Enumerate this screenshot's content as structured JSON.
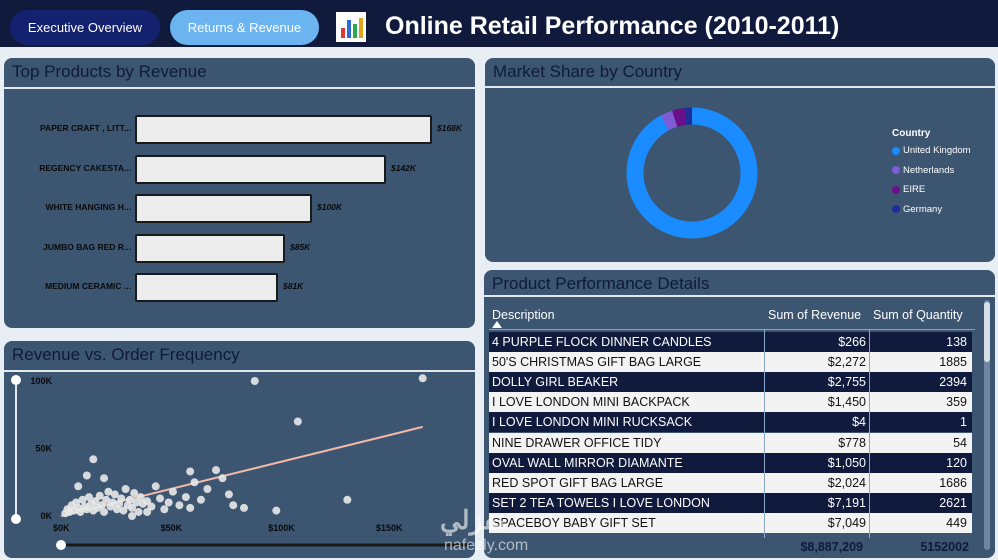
{
  "nav": {
    "executive_overview": "Executive Overview",
    "returns_revenue": "Returns & Revenue"
  },
  "header": {
    "title": "Online Retail Performance (2010-2011)",
    "logo_icon": "bar-chart-icon"
  },
  "top_products": {
    "title": "Top Products by Revenue",
    "items": [
      {
        "label": "PAPER CRAFT , LITT...",
        "value": 168,
        "value_label": "$168K"
      },
      {
        "label": "REGENCY CAKESTA...",
        "value": 142,
        "value_label": "$142K"
      },
      {
        "label": "WHITE HANGING H...",
        "value": 100,
        "value_label": "$100K"
      },
      {
        "label": "JUMBO BAG RED R...",
        "value": 85,
        "value_label": "$85K"
      },
      {
        "label": "MEDIUM CERAMIC ...",
        "value": 81,
        "value_label": "$81K"
      }
    ]
  },
  "market_share": {
    "title": "Market Share by Country",
    "legend_title": "Country",
    "countries": [
      {
        "name": "United Kingdom",
        "share": 0.92,
        "color": "#1a8cff"
      },
      {
        "name": "Netherlands",
        "share": 0.03,
        "color": "#7f5bd6"
      },
      {
        "name": "EIRE",
        "share": 0.03,
        "color": "#6a0e8a"
      },
      {
        "name": "Germany",
        "share": 0.02,
        "color": "#1f2d9a"
      }
    ]
  },
  "scatter": {
    "title": "Revenue vs. Order Frequency",
    "x_ticks": [
      "$0K",
      "$50K",
      "$100K",
      "$150K"
    ],
    "y_ticks": [
      "0K",
      "50K",
      "100K"
    ]
  },
  "details": {
    "title": "Product Performance Details",
    "headers": {
      "description": "Description",
      "revenue": "Sum of Revenue",
      "quantity": "Sum of Quantity"
    },
    "rows": [
      {
        "description": "4 PURPLE FLOCK DINNER CANDLES",
        "revenue": "$266",
        "quantity": "138"
      },
      {
        "description": "50'S CHRISTMAS GIFT BAG LARGE",
        "revenue": "$2,272",
        "quantity": "1885"
      },
      {
        "description": "DOLLY GIRL BEAKER",
        "revenue": "$2,755",
        "quantity": "2394"
      },
      {
        "description": "I LOVE LONDON MINI BACKPACK",
        "revenue": "$1,450",
        "quantity": "359"
      },
      {
        "description": "I LOVE LONDON MINI RUCKSACK",
        "revenue": "$4",
        "quantity": "1"
      },
      {
        "description": "NINE DRAWER OFFICE TIDY",
        "revenue": "$778",
        "quantity": "54"
      },
      {
        "description": "OVAL WALL MIRROR DIAMANTE",
        "revenue": "$1,050",
        "quantity": "120"
      },
      {
        "description": "RED SPOT GIFT BAG LARGE",
        "revenue": "$2,024",
        "quantity": "1686"
      },
      {
        "description": "SET 2 TEA TOWELS I LOVE LONDON",
        "revenue": "$7,191",
        "quantity": "2621"
      },
      {
        "description": "SPACEBOY BABY GIFT SET",
        "revenue": "$7,049",
        "quantity": "449"
      }
    ],
    "total_revenue": "$8,887,209",
    "total_quantity": "5152002"
  },
  "watermark": {
    "main": "نفزلي",
    "sub": "nafezly.com"
  },
  "chart_data": [
    {
      "type": "bar",
      "orientation": "horizontal",
      "title": "Top Products by Revenue",
      "categories": [
        "PAPER CRAFT , LITT...",
        "REGENCY CAKESTA...",
        "WHITE HANGING H...",
        "JUMBO BAG RED R...",
        "MEDIUM CERAMIC ..."
      ],
      "values": [
        168,
        142,
        100,
        85,
        81
      ],
      "unit": "$K"
    },
    {
      "type": "pie",
      "title": "Market Share by Country",
      "categories": [
        "United Kingdom",
        "Netherlands",
        "EIRE",
        "Germany"
      ],
      "values": [
        0.92,
        0.03,
        0.03,
        0.02
      ]
    },
    {
      "type": "scatter",
      "title": "Revenue vs. Order Frequency",
      "xlim": [
        0,
        170
      ],
      "ylim": [
        0,
        100
      ],
      "x_ticks": [
        "$0K",
        "$50K",
        "$100K",
        "$150K"
      ],
      "y_ticks": [
        "0K",
        "50K",
        "100K"
      ],
      "points": [
        [
          2,
          2
        ],
        [
          3,
          5
        ],
        [
          4,
          3
        ],
        [
          5,
          8
        ],
        [
          6,
          4
        ],
        [
          7,
          10
        ],
        [
          8,
          6
        ],
        [
          9,
          3
        ],
        [
          10,
          12
        ],
        [
          11,
          7
        ],
        [
          12,
          5
        ],
        [
          13,
          14
        ],
        [
          14,
          9
        ],
        [
          15,
          4
        ],
        [
          16,
          11
        ],
        [
          17,
          6
        ],
        [
          18,
          15
        ],
        [
          19,
          8
        ],
        [
          20,
          3
        ],
        [
          21,
          12
        ],
        [
          22,
          18
        ],
        [
          23,
          7
        ],
        [
          24,
          10
        ],
        [
          25,
          16
        ],
        [
          26,
          5
        ],
        [
          27,
          9
        ],
        [
          28,
          13
        ],
        [
          29,
          4
        ],
        [
          30,
          20
        ],
        [
          31,
          8
        ],
        [
          32,
          12
        ],
        [
          33,
          6
        ],
        [
          34,
          17
        ],
        [
          35,
          10
        ],
        [
          36,
          3
        ],
        [
          37,
          14
        ],
        [
          38,
          9
        ],
        [
          40,
          11
        ],
        [
          42,
          7
        ],
        [
          44,
          22
        ],
        [
          46,
          13
        ],
        [
          48,
          5
        ],
        [
          50,
          10
        ],
        [
          52,
          18
        ],
        [
          55,
          8
        ],
        [
          58,
          14
        ],
        [
          60,
          6
        ],
        [
          62,
          25
        ],
        [
          65,
          12
        ],
        [
          68,
          20
        ],
        [
          72,
          34
        ],
        [
          75,
          28
        ],
        [
          78,
          16
        ],
        [
          80,
          8
        ],
        [
          85,
          6
        ],
        [
          90,
          100
        ],
        [
          100,
          4
        ],
        [
          110,
          70
        ],
        [
          133,
          12
        ],
        [
          168,
          102
        ],
        [
          15,
          42
        ],
        [
          12,
          30
        ],
        [
          20,
          28
        ],
        [
          8,
          22
        ],
        [
          60,
          33
        ],
        [
          40,
          3
        ],
        [
          33,
          0
        ]
      ],
      "trendline": {
        "from": [
          0,
          0
        ],
        "to": [
          168,
          66
        ]
      }
    }
  ]
}
